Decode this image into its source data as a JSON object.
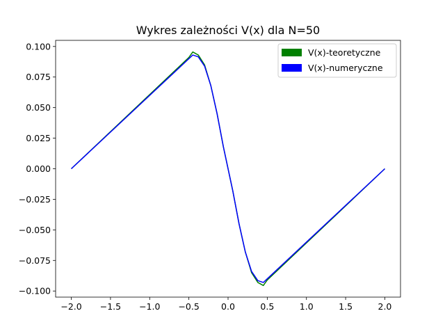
{
  "chart_data": {
    "type": "line",
    "title": "Wykres zależności V(x) dla N=50",
    "xlabel": "",
    "ylabel": "",
    "xlim": [
      -2.2,
      2.2
    ],
    "ylim": [
      -0.105,
      0.105
    ],
    "grid": false,
    "legend": "top-right",
    "xticks": [
      -2.0,
      -1.5,
      -1.0,
      -0.5,
      0.0,
      0.5,
      1.0,
      1.5,
      2.0
    ],
    "xtick_labels": [
      "−2.0",
      "−1.5",
      "−1.0",
      "−0.5",
      "0.0",
      "0.5",
      "1.0",
      "1.5",
      "2.0"
    ],
    "yticks": [
      -0.1,
      -0.075,
      -0.05,
      -0.025,
      0.0,
      0.025,
      0.05,
      0.075,
      0.1
    ],
    "ytick_labels": [
      "−0.100",
      "−0.075",
      "−0.050",
      "−0.025",
      "0.000",
      "0.025",
      "0.050",
      "0.075",
      "0.100"
    ],
    "series": [
      {
        "name": "V(x)-teoretyczne",
        "color": "#008000",
        "x": [
          -2.0,
          -0.5,
          -0.45,
          -0.38,
          -0.3,
          -0.22,
          -0.14,
          -0.06,
          0.0,
          0.06,
          0.14,
          0.22,
          0.3,
          0.38,
          0.45,
          0.5,
          2.0
        ],
        "y": [
          0.0,
          0.091,
          0.0955,
          0.093,
          0.085,
          0.068,
          0.045,
          0.018,
          0.0,
          -0.018,
          -0.045,
          -0.068,
          -0.085,
          -0.093,
          -0.0955,
          -0.091,
          0.0
        ]
      },
      {
        "name": "V(x)-numeryczne",
        "color": "#0000ff",
        "x": [
          -2.0,
          -0.45,
          -0.38,
          -0.3,
          -0.22,
          -0.14,
          -0.06,
          0.0,
          0.06,
          0.14,
          0.22,
          0.3,
          0.38,
          0.45,
          2.0
        ],
        "y": [
          0.0,
          0.093,
          0.0915,
          0.084,
          0.068,
          0.045,
          0.018,
          0.0,
          -0.018,
          -0.045,
          -0.068,
          -0.084,
          -0.0915,
          -0.093,
          0.0
        ]
      }
    ]
  }
}
